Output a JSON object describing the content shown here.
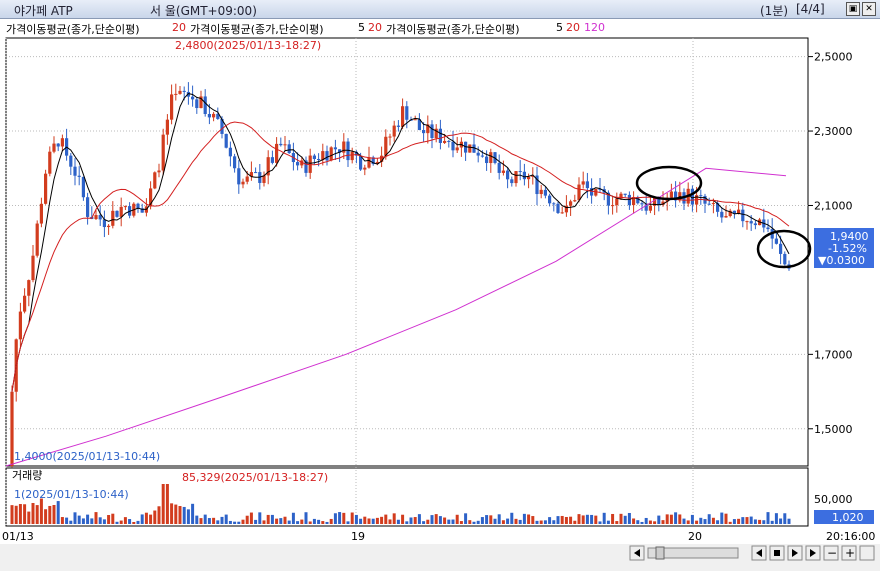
{
  "title_bar": {
    "instrument": "야가페 ATP",
    "location": "서 울(GMT+09:00)",
    "interval": "(1분)",
    "page": "[4/4]"
  },
  "legend": {
    "ma_label_1": "가격이동평균(종가,단순이평)",
    "ma_period_1": "20",
    "ma_label_2": "가격이동평균(종가,단순이평)",
    "ma_periods_2": [
      "5",
      "20"
    ],
    "ma_label_3": "가격이동평균(종가,단순이평)",
    "ma_periods_3": [
      "5",
      "20",
      "120"
    ]
  },
  "colors": {
    "up": "#d23c1e",
    "down": "#2d62c8",
    "ma5": "#000000",
    "ma20": "#d42020",
    "ma120": "#d030d0",
    "badge": "#3c6ee0"
  },
  "price_annotations": {
    "high": "2,4800(2025/01/13-18:27)",
    "low": "1,4000(2025/01/13-10:44)"
  },
  "volume_panel": {
    "title": "거래량",
    "max_annotation": "85,329(2025/01/13-18:27)",
    "min_annotation": "1(2025/01/13-10:44)",
    "y_tick": "50,000",
    "current": "1,020"
  },
  "current_quote": {
    "price": "1,9400",
    "change_pct": "-1.52%",
    "change": "▼0.0300"
  },
  "time_axis": {
    "right_label": "20:16:00"
  },
  "chart_data": {
    "type": "candlestick",
    "x_labels": [
      "01/13",
      "19",
      "20"
    ],
    "y_ticks": [
      "2,5000",
      "2,3000",
      "2,1000",
      "1,7000",
      "1,5000"
    ],
    "ylim": [
      1.4,
      2.55
    ],
    "y_tick_values": [
      2.5,
      2.3,
      2.1,
      1.7,
      1.5
    ],
    "series": [
      {
        "name": "5",
        "color": "#000000"
      },
      {
        "name": "20",
        "color": "#d42020"
      },
      {
        "name": "120",
        "color": "#d030d0"
      }
    ],
    "high": 2.48,
    "low": 1.4,
    "last": 1.94,
    "ma120_path": [
      [
        0,
        1.4
      ],
      [
        100,
        1.48
      ],
      [
        210,
        1.58
      ],
      [
        340,
        1.7
      ],
      [
        450,
        1.82
      ],
      [
        550,
        1.95
      ],
      [
        640,
        2.1
      ],
      [
        700,
        2.2
      ],
      [
        780,
        2.18
      ]
    ],
    "annotations": [
      "circle around 2.13 near 20 open",
      "circle around 1.95 at last bars"
    ]
  }
}
